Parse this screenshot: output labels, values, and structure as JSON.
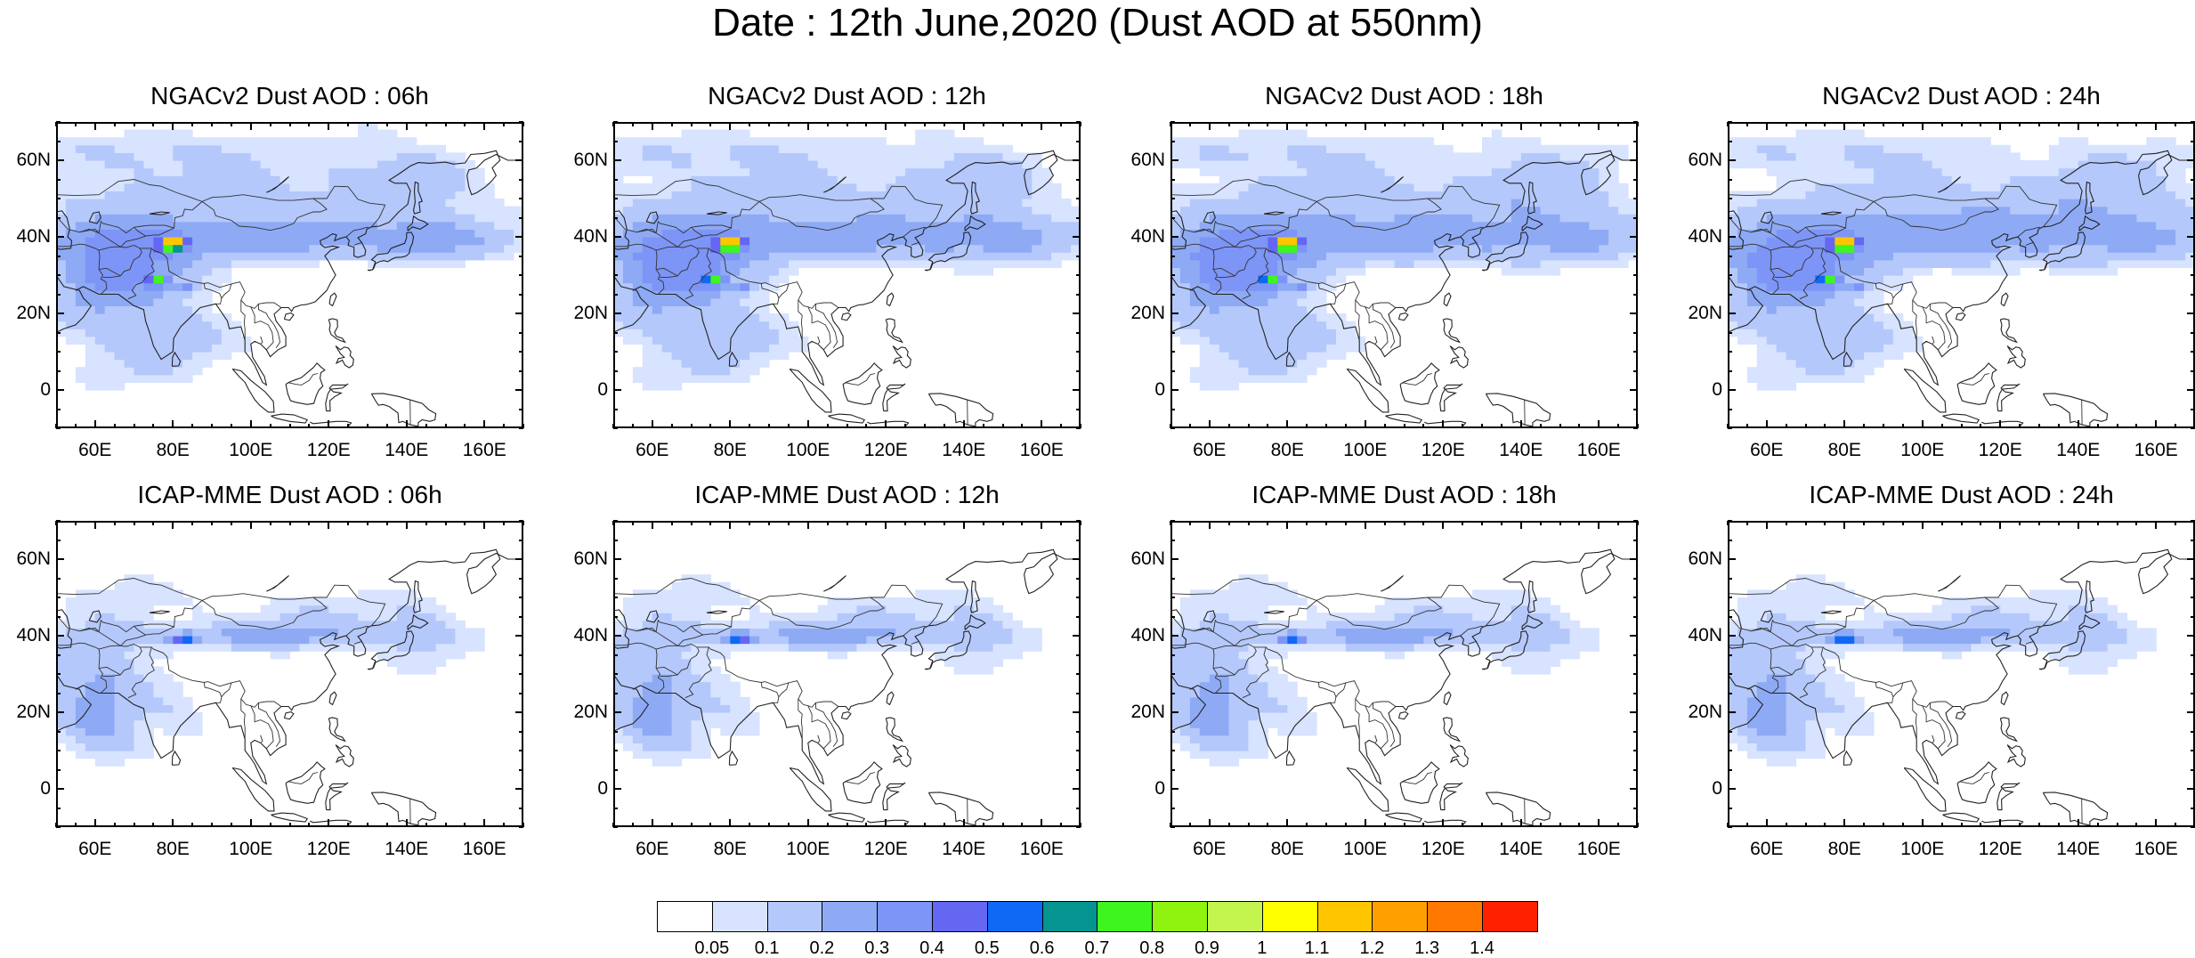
{
  "figure": {
    "title": "Date : 12th June,2020 (Dust AOD at 550nm)"
  },
  "panels": [
    {
      "title": "NGACv2 Dust AOD : 06h",
      "model": "ngac",
      "hour": 6
    },
    {
      "title": "NGACv2 Dust AOD : 12h",
      "model": "ngac",
      "hour": 12
    },
    {
      "title": "NGACv2 Dust AOD : 18h",
      "model": "ngac",
      "hour": 18
    },
    {
      "title": "NGACv2 Dust AOD : 24h",
      "model": "ngac",
      "hour": 24
    },
    {
      "title": "ICAP-MME Dust AOD : 06h",
      "model": "icap",
      "hour": 6
    },
    {
      "title": "ICAP-MME Dust AOD : 12h",
      "model": "icap",
      "hour": 12
    },
    {
      "title": "ICAP-MME Dust AOD : 18h",
      "model": "icap",
      "hour": 18
    },
    {
      "title": "ICAP-MME Dust AOD : 24h",
      "model": "icap",
      "hour": 24
    }
  ],
  "axes": {
    "lon_range": [
      50,
      170
    ],
    "lat_range": [
      -10,
      70
    ],
    "lon_ticks": [
      {
        "value": 60,
        "label": "60E"
      },
      {
        "value": 80,
        "label": "80E"
      },
      {
        "value": 100,
        "label": "100E"
      },
      {
        "value": 120,
        "label": "120E"
      },
      {
        "value": 140,
        "label": "140E"
      },
      {
        "value": 160,
        "label": "160E"
      }
    ],
    "lat_ticks": [
      {
        "value": 60,
        "label": "60N"
      },
      {
        "value": 40,
        "label": "40N"
      },
      {
        "value": 20,
        "label": "20N"
      },
      {
        "value": 0,
        "label": "0"
      }
    ]
  },
  "colorbar": {
    "colors": [
      "#ffffff",
      "#d7e3ff",
      "#b4c8fb",
      "#8eaaf5",
      "#7d95f6",
      "#6367f2",
      "#0f69f5",
      "#05948f",
      "#3ef51f",
      "#90f20f",
      "#c3f54e",
      "#ffff00",
      "#ffc600",
      "#ffa000",
      "#ff7800",
      "#ff2000"
    ],
    "labels": [
      "0.05",
      "0.1",
      "0.2",
      "0.3",
      "0.4",
      "0.5",
      "0.6",
      "0.7",
      "0.8",
      "0.9",
      "1",
      "1.1",
      "1.2",
      "1.3",
      "1.4"
    ]
  }
}
